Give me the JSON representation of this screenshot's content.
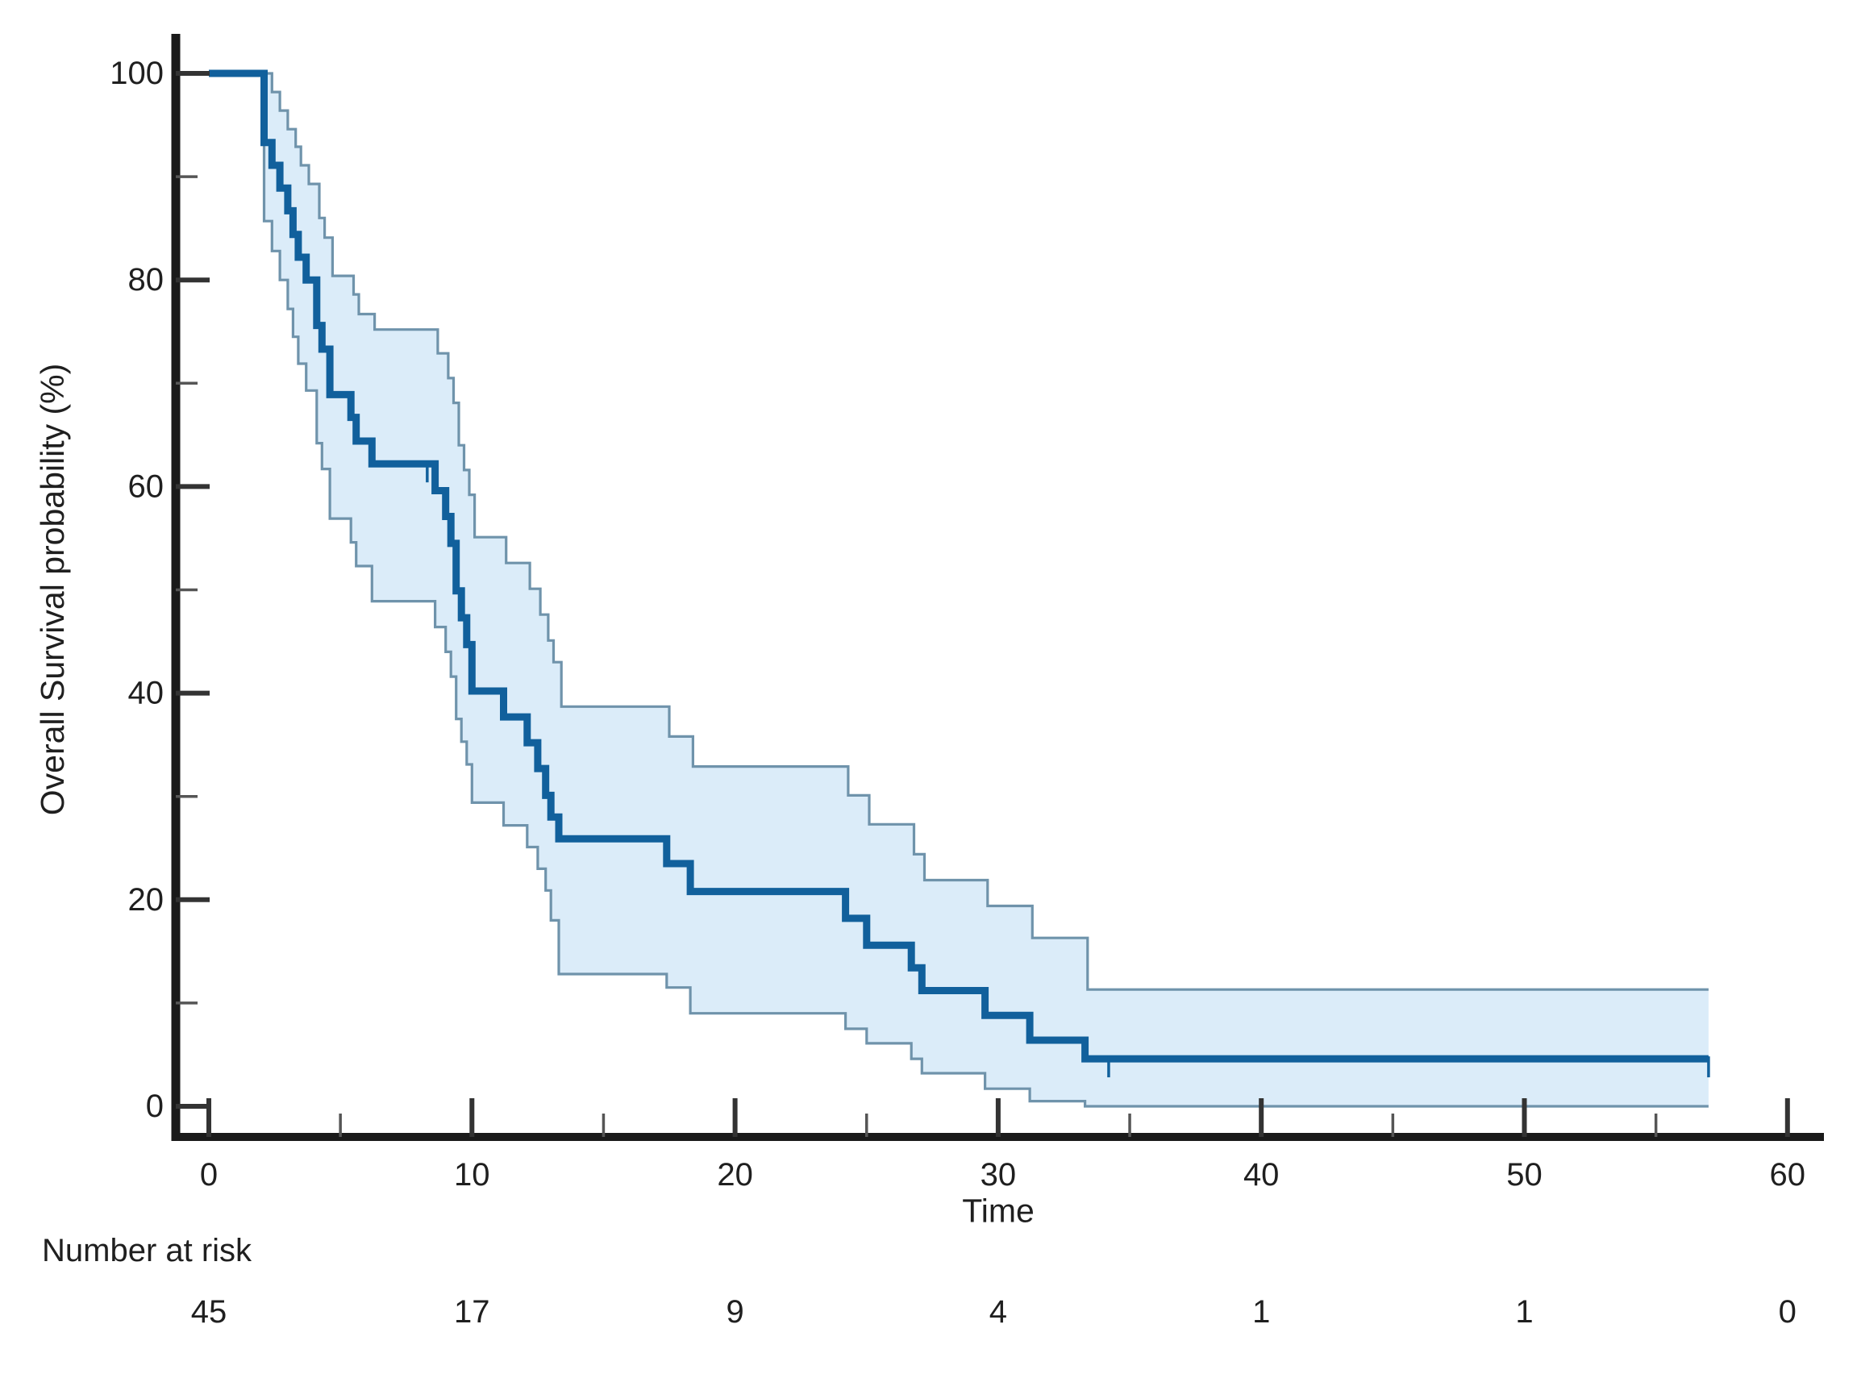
{
  "figure": {
    "background": "#ffffff"
  },
  "chart_data": {
    "type": "line",
    "subtype": "kaplan-meier-step",
    "title": "",
    "xlabel": "Time",
    "ylabel": "Overall Survival probability (%)",
    "legend_position": "none",
    "grid": false,
    "x_axis": {
      "min": 0,
      "max": 60,
      "major_ticks": [
        0,
        10,
        20,
        30,
        40,
        50,
        60
      ],
      "minor_ticks": [
        5,
        15,
        25,
        35,
        45,
        55
      ]
    },
    "y_axis": {
      "min": 0,
      "max": 100,
      "major_ticks": [
        0,
        20,
        40,
        60,
        80,
        100
      ],
      "minor_ticks": [
        10,
        30,
        50,
        70,
        90
      ]
    },
    "colors": {
      "survival_line": "#11609c",
      "ci_line": "#6f93ab",
      "ci_band_fill": "#dbecf9",
      "axis": "#1a1a1a",
      "major_tick": "#333333",
      "minor_tick": "#555555"
    },
    "series": [
      {
        "name": "overall-survival",
        "role": "estimate",
        "points": [
          [
            0,
            100
          ],
          [
            2.1,
            93.3
          ],
          [
            2.4,
            91.1
          ],
          [
            2.7,
            88.9
          ],
          [
            3.0,
            86.7
          ],
          [
            3.2,
            84.4
          ],
          [
            3.4,
            82.2
          ],
          [
            3.7,
            80.0
          ],
          [
            4.1,
            75.6
          ],
          [
            4.3,
            73.3
          ],
          [
            4.6,
            68.9
          ],
          [
            5.4,
            66.7
          ],
          [
            5.6,
            64.4
          ],
          [
            6.2,
            62.2
          ],
          [
            8.6,
            59.6
          ],
          [
            9.0,
            57.1
          ],
          [
            9.2,
            54.5
          ],
          [
            9.4,
            49.9
          ],
          [
            9.6,
            47.3
          ],
          [
            9.8,
            44.7
          ],
          [
            10.0,
            40.2
          ],
          [
            11.2,
            37.7
          ],
          [
            12.1,
            35.2
          ],
          [
            12.5,
            32.7
          ],
          [
            12.8,
            30.1
          ],
          [
            13.0,
            28.0
          ],
          [
            13.3,
            25.9
          ],
          [
            17.4,
            23.5
          ],
          [
            18.3,
            20.8
          ],
          [
            24.2,
            18.2
          ],
          [
            25.0,
            15.6
          ],
          [
            26.7,
            13.4
          ],
          [
            27.1,
            11.2
          ],
          [
            29.5,
            8.8
          ],
          [
            31.2,
            6.4
          ],
          [
            33.3,
            4.6
          ],
          [
            57.0,
            4.6
          ]
        ]
      },
      {
        "name": "upper-95-ci",
        "role": "upper-confidence-limit",
        "points": [
          [
            0,
            100
          ],
          [
            2.4,
            98.2
          ],
          [
            2.7,
            96.4
          ],
          [
            3.0,
            94.6
          ],
          [
            3.3,
            92.9
          ],
          [
            3.5,
            91.1
          ],
          [
            3.8,
            89.3
          ],
          [
            4.2,
            86.0
          ],
          [
            4.4,
            84.1
          ],
          [
            4.7,
            80.4
          ],
          [
            5.5,
            78.6
          ],
          [
            5.7,
            76.7
          ],
          [
            6.3,
            75.2
          ],
          [
            8.7,
            72.9
          ],
          [
            9.1,
            70.5
          ],
          [
            9.3,
            68.1
          ],
          [
            9.5,
            64.0
          ],
          [
            9.7,
            61.6
          ],
          [
            9.9,
            59.2
          ],
          [
            10.1,
            55.1
          ],
          [
            11.3,
            52.6
          ],
          [
            12.2,
            50.1
          ],
          [
            12.6,
            47.6
          ],
          [
            12.9,
            45.1
          ],
          [
            13.1,
            43.0
          ],
          [
            13.4,
            38.7
          ],
          [
            17.5,
            35.8
          ],
          [
            18.4,
            32.9
          ],
          [
            24.3,
            30.1
          ],
          [
            25.1,
            27.3
          ],
          [
            26.8,
            24.4
          ],
          [
            27.2,
            21.9
          ],
          [
            29.6,
            19.4
          ],
          [
            31.3,
            16.3
          ],
          [
            33.4,
            11.3
          ],
          [
            57.0,
            11.3
          ]
        ]
      },
      {
        "name": "lower-95-ci",
        "role": "lower-confidence-limit",
        "points": [
          [
            0,
            100
          ],
          [
            2.1,
            85.7
          ],
          [
            2.4,
            82.8
          ],
          [
            2.7,
            80.0
          ],
          [
            3.0,
            77.2
          ],
          [
            3.2,
            74.5
          ],
          [
            3.4,
            71.9
          ],
          [
            3.7,
            69.3
          ],
          [
            4.1,
            64.2
          ],
          [
            4.3,
            61.7
          ],
          [
            4.6,
            56.9
          ],
          [
            5.4,
            54.6
          ],
          [
            5.6,
            52.3
          ],
          [
            6.2,
            48.9
          ],
          [
            8.6,
            46.4
          ],
          [
            9.0,
            44.0
          ],
          [
            9.2,
            41.6
          ],
          [
            9.4,
            37.5
          ],
          [
            9.6,
            35.3
          ],
          [
            9.8,
            33.1
          ],
          [
            10.0,
            29.4
          ],
          [
            11.2,
            27.2
          ],
          [
            12.1,
            25.1
          ],
          [
            12.5,
            23.0
          ],
          [
            12.8,
            20.9
          ],
          [
            13.0,
            18.0
          ],
          [
            13.3,
            12.8
          ],
          [
            17.4,
            11.5
          ],
          [
            18.3,
            9.0
          ],
          [
            24.2,
            7.5
          ],
          [
            25.0,
            6.1
          ],
          [
            26.7,
            4.6
          ],
          [
            27.1,
            3.2
          ],
          [
            29.5,
            1.7
          ],
          [
            31.2,
            0.5
          ],
          [
            33.3,
            0
          ],
          [
            57.0,
            0
          ]
        ]
      }
    ],
    "censor_marks": [
      [
        8.3,
        62.2
      ],
      [
        34.2,
        4.6
      ],
      [
        57.0,
        4.6
      ]
    ],
    "x_end": 57.0
  },
  "risk_table": {
    "title": "Number at risk",
    "times": [
      0,
      10,
      20,
      30,
      40,
      50,
      60
    ],
    "counts": [
      "45",
      "17",
      "9",
      "4",
      "1",
      "1",
      "0"
    ]
  }
}
